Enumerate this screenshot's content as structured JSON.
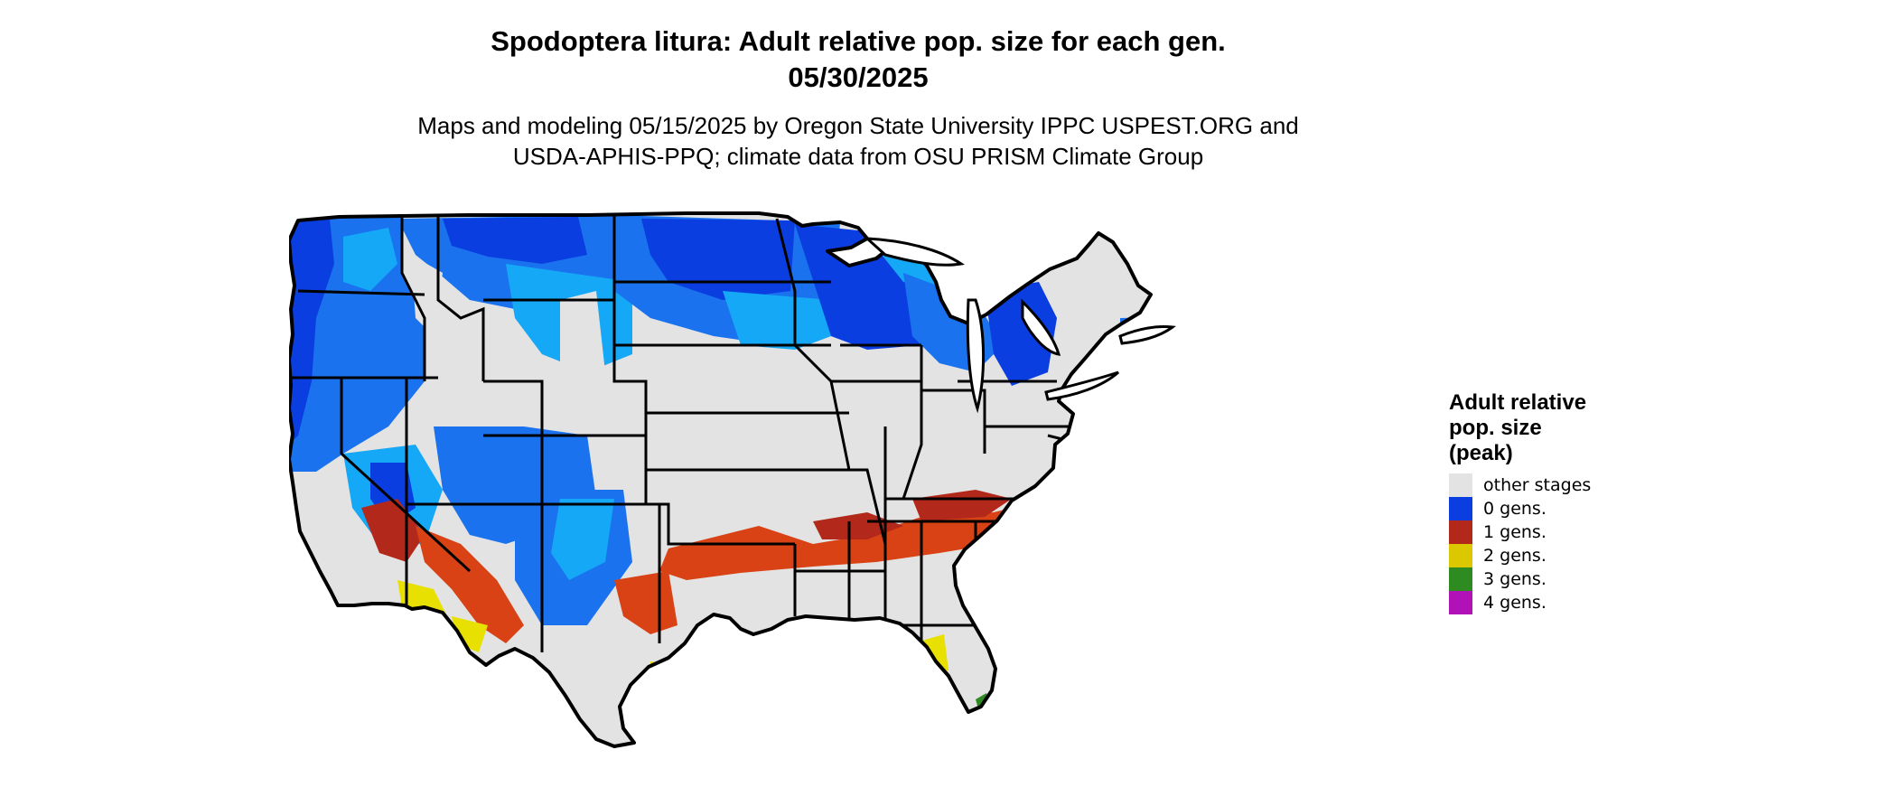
{
  "title": {
    "line1": "Spodoptera litura: Adult relative pop. size for each gen.",
    "line2": "05/30/2025"
  },
  "subtitle": {
    "line1": "Maps and modeling 05/15/2025 by Oregon State University IPPC USPEST.ORG and",
    "line2": "USDA-APHIS-PPQ; climate data from OSU PRISM Climate Group"
  },
  "legend": {
    "title": "Adult relative\npop. size\n(peak)",
    "items": [
      {
        "label": "other stages",
        "color": "#e3e3e3"
      },
      {
        "label": "0 gens.",
        "color": "#0b3ee0"
      },
      {
        "label": "1 gens.",
        "color": "#b2281a"
      },
      {
        "label": "2 gens.",
        "color": "#dcc800"
      },
      {
        "label": "3 gens.",
        "color": "#2e8b22"
      },
      {
        "label": "4 gens.",
        "color": "#b012b8"
      }
    ]
  },
  "map": {
    "region": "contiguous-united-states",
    "base_color": "#e3e3e3",
    "boundary_color": "#000000",
    "zone_colors": {
      "gen0_dark": "#0b3ee0",
      "gen0_mid": "#1a72ee",
      "gen0_light": "#14a8f6",
      "gen1": "#d84214",
      "gen1_dark": "#b2281a",
      "gen2": "#e8e000",
      "gen3": "#2e8b22"
    }
  }
}
